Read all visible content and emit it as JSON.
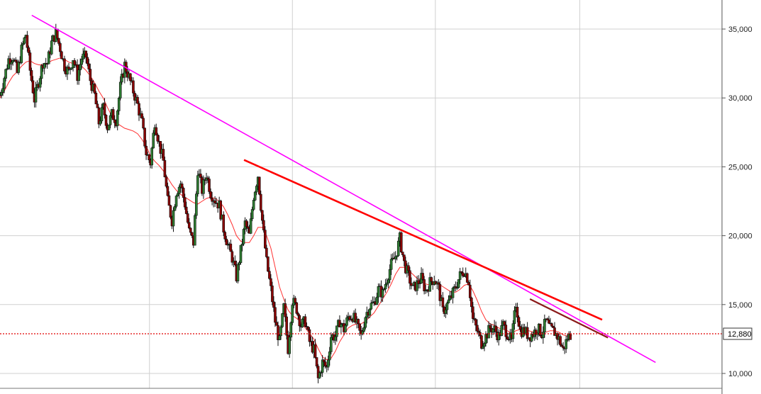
{
  "chart_data": {
    "type": "candlestick",
    "title": "",
    "xlabel": "",
    "ylabel": "",
    "ylim": [
      8000,
      37000
    ],
    "y_ticks": [
      {
        "value": 10000,
        "label": "10,000"
      },
      {
        "value": 15000,
        "label": "15,000"
      },
      {
        "value": 20000,
        "label": "20,000"
      },
      {
        "value": 25000,
        "label": "25,000"
      },
      {
        "value": 30000,
        "label": "30,000"
      },
      {
        "value": 35000,
        "label": "35,000"
      }
    ],
    "last_price": {
      "value": 12880,
      "label": "12,880"
    },
    "grid": true,
    "colors": {
      "up_candle": "#2e7d32",
      "down_candle": "#8b0000",
      "moving_average": "#ff3030",
      "long_trendline": "#ff00ff",
      "mid_trendline": "#ff0000",
      "short_trendline": "#8b1a1a",
      "last_price_line": "#e00000"
    },
    "close_series": [
      30200,
      31500,
      32800,
      33000,
      31800,
      33500,
      34600,
      32000,
      29900,
      31200,
      32600,
      32500,
      34000,
      34700,
      33600,
      32300,
      31900,
      32900,
      31600,
      32900,
      33000,
      31300,
      30200,
      28200,
      29300,
      27900,
      28800,
      28400,
      30800,
      32400,
      31500,
      30500,
      29500,
      28200,
      26000,
      25300,
      28300,
      26700,
      25400,
      22500,
      21100,
      23200,
      23800,
      22300,
      20300,
      19500,
      24800,
      23300,
      24500,
      23100,
      22600,
      22200,
      20500,
      19300,
      18400,
      17000,
      18900,
      20900,
      20000,
      22900,
      24400,
      21100,
      18100,
      16100,
      13800,
      12300,
      14800,
      11800,
      15300,
      14700,
      13500,
      13800,
      12300,
      11700,
      9600,
      10800,
      10400,
      12700,
      12700,
      13800,
      13200,
      14100,
      14200,
      13500,
      12700,
      14200,
      14900,
      15100,
      16100,
      15800,
      16900,
      17900,
      18500,
      19800,
      18000,
      17100,
      16100,
      16500,
      16900,
      16000,
      16600,
      16900,
      16200,
      14500,
      15000,
      15600,
      16300,
      17100,
      17500,
      16700,
      13900,
      13100,
      12200,
      12700,
      13300,
      13200,
      12700,
      13500,
      12900,
      12300,
      15100,
      13100,
      13100,
      12700,
      12900,
      13300,
      12900,
      13800,
      13200,
      13000,
      12500,
      11700,
      12600,
      12900
    ],
    "moving_average_series": [
      30000,
      30500,
      31100,
      31600,
      31900,
      32300,
      32600,
      32700,
      32500,
      32400,
      32400,
      32500,
      32700,
      32800,
      32900,
      32800,
      32600,
      32500,
      32400,
      32300,
      32000,
      31600,
      31100,
      30500,
      30000,
      29300,
      28700,
      28200,
      28000,
      27800,
      27700,
      27600,
      27400,
      27000,
      26500,
      25800,
      25400,
      25100,
      24700,
      24200,
      23700,
      23300,
      23000,
      22800,
      22600,
      22400,
      22300,
      22500,
      22700,
      22800,
      22700,
      22500,
      22100,
      21500,
      20800,
      20000,
      19600,
      19500,
      19500,
      20000,
      20600,
      20600,
      20000,
      19100,
      17700,
      16300,
      15400,
      14600,
      14200,
      14000,
      13700,
      13300,
      12900,
      12500,
      11800,
      11200,
      11000,
      11100,
      11600,
      12300,
      12800,
      13300,
      13500,
      13600,
      13600,
      13800,
      14100,
      14400,
      14900,
      15400,
      15900,
      16500,
      17200,
      17700,
      17700,
      17500,
      17200,
      16900,
      16700,
      16500,
      16400,
      16500,
      16500,
      16300,
      16100,
      15900,
      15900,
      16100,
      16400,
      16500,
      16000,
      15300,
      14500,
      13900,
      13600,
      13500,
      13300,
      13200,
      13100,
      12900,
      13100,
      13200,
      13200,
      13100,
      13000,
      13000,
      12950,
      13000,
      13100,
      13100,
      13000,
      12800,
      12700,
      12750
    ],
    "trendlines": [
      {
        "from": {
          "t": 0.044,
          "y": 36000
        },
        "to": {
          "t": 0.908,
          "y": 10800
        }
      },
      {
        "from": {
          "t": 0.338,
          "y": 25500
        },
        "to": {
          "t": 0.834,
          "y": 13900
        }
      },
      {
        "from": {
          "t": 0.734,
          "y": 15400
        },
        "to": {
          "t": 0.842,
          "y": 12600
        }
      }
    ]
  }
}
